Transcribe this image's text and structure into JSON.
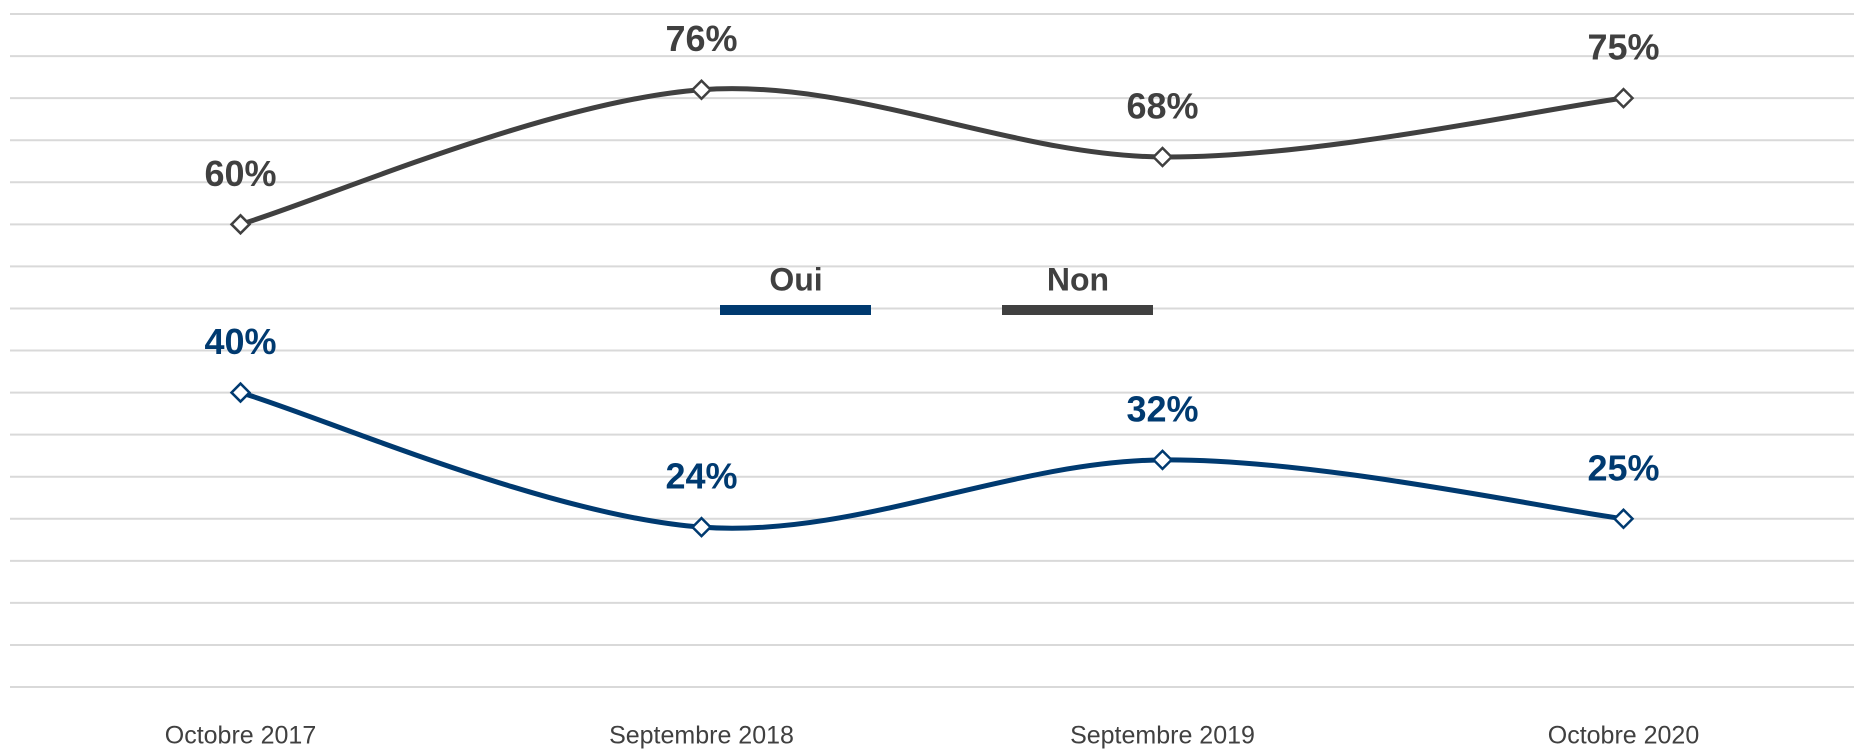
{
  "chart_data": {
    "type": "line",
    "categories": [
      "Octobre 2017",
      "Septembre 2018",
      "Septembre 2019",
      "Octobre 2020"
    ],
    "series": [
      {
        "name": "Oui",
        "color": "#003a70",
        "values": [
          40,
          24,
          32,
          25
        ],
        "value_labels": [
          "40%",
          "24%",
          "32%",
          "25%"
        ]
      },
      {
        "name": "Non",
        "color": "#404040",
        "values": [
          60,
          76,
          68,
          75
        ],
        "value_labels": [
          "60%",
          "76%",
          "68%",
          "75%"
        ]
      }
    ],
    "ylim": [
      5,
      85
    ],
    "yticks": [
      5,
      10,
      15,
      20,
      25,
      30,
      35,
      40,
      45,
      50,
      55,
      60,
      65,
      70,
      75,
      80,
      85
    ],
    "grid": true,
    "smooth": true,
    "legend": "center"
  }
}
